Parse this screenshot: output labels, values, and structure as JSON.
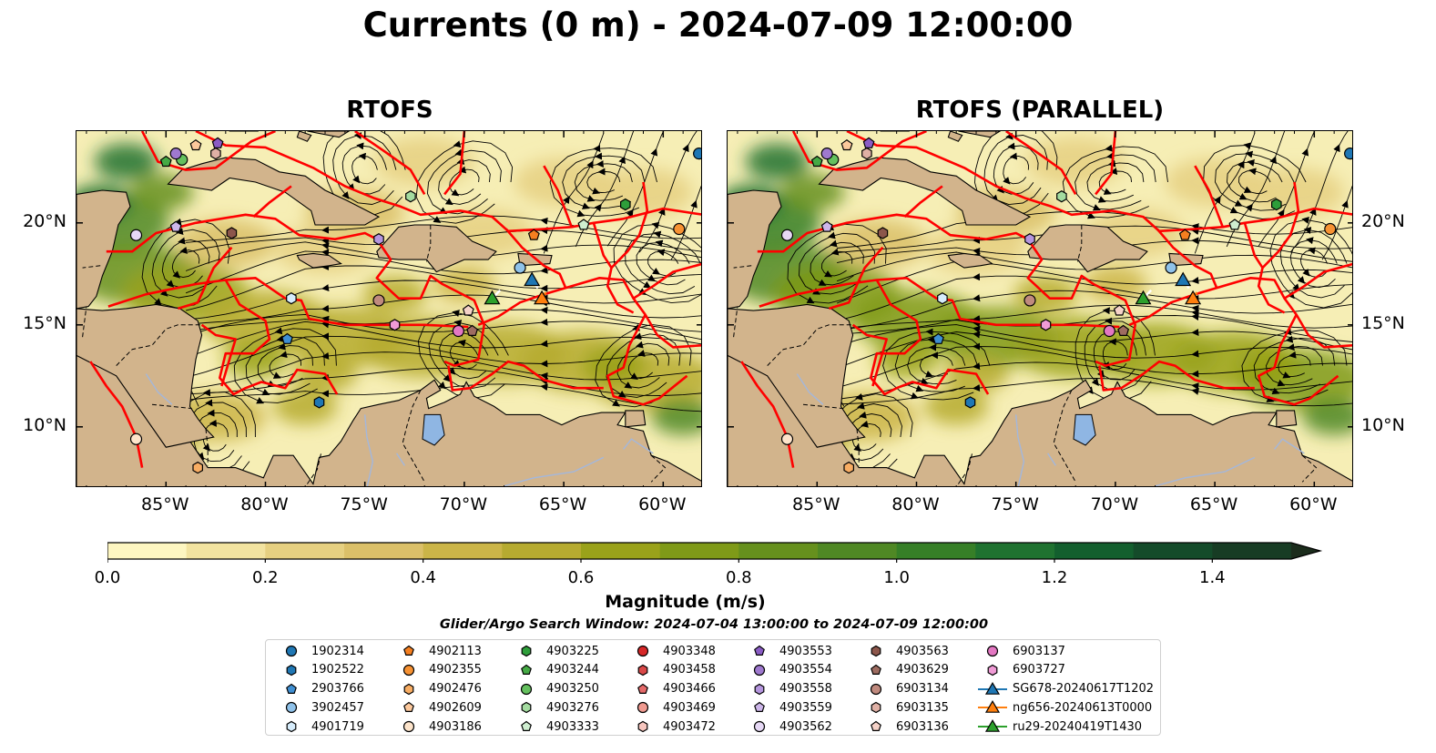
{
  "title": "Currents (0 m) - 2024-07-09 12:00:00",
  "panels": [
    {
      "title": "RTOFS",
      "variant": 0
    },
    {
      "title": "RTOFS (PARALLEL)",
      "variant": 1
    }
  ],
  "map": {
    "lon_range": [
      -89.5,
      -58.0
    ],
    "lat_range": [
      7.0,
      24.5
    ],
    "lon_ticks": [
      {
        "value": -85,
        "label": "85°W"
      },
      {
        "value": -80,
        "label": "80°W"
      },
      {
        "value": -75,
        "label": "75°W"
      },
      {
        "value": -70,
        "label": "70°W"
      },
      {
        "value": -65,
        "label": "65°W"
      },
      {
        "value": -60,
        "label": "60°W"
      }
    ],
    "lat_ticks": [
      {
        "value": 20,
        "label": "20°N"
      },
      {
        "value": 15,
        "label": "15°N"
      },
      {
        "value": 10,
        "label": "10°N"
      }
    ],
    "colors": {
      "land": "#d2b48c",
      "lake": "#8fb6e3",
      "river": "#a3b7dc",
      "eez": "#ff0000",
      "streamline": "#000000",
      "coast": "#000000"
    }
  },
  "colorbar": {
    "title": "Magnitude (m/s)",
    "min": 0.0,
    "max": 1.5,
    "step": 0.1,
    "extend": "max",
    "colors": [
      "#fdf6c1",
      "#f2e3a0",
      "#e6d081",
      "#dbc069",
      "#cbb548",
      "#b6ab30",
      "#9aa21a",
      "#7f9a18",
      "#66901d",
      "#4f8824",
      "#367f27",
      "#1f7230",
      "#135f2e",
      "#144b2a",
      "#173c24",
      "#1b2c1c"
    ],
    "labels": [
      {
        "value": 0.0,
        "label": "0.0"
      },
      {
        "value": 0.2,
        "label": "0.2"
      },
      {
        "value": 0.4,
        "label": "0.4"
      },
      {
        "value": 0.6,
        "label": "0.6"
      },
      {
        "value": 0.8,
        "label": "0.8"
      },
      {
        "value": 1.0,
        "label": "1.0"
      },
      {
        "value": 1.2,
        "label": "1.2"
      },
      {
        "value": 1.4,
        "label": "1.4"
      }
    ]
  },
  "search_window": "Glider/Argo Search Window: 2024-07-04 13:00:00 to 2024-07-09 12:00:00",
  "legend": [
    {
      "label": "1902314",
      "marker": "circle",
      "color": "#1f77b4",
      "lon": -58.2,
      "lat": 23.4
    },
    {
      "label": "1902522",
      "marker": "hexagon",
      "color": "#1f77b4",
      "lon": -77.3,
      "lat": 11.2
    },
    {
      "label": "2903766",
      "marker": "pentagon",
      "color": "#3f8fd2",
      "lon": -78.9,
      "lat": 14.3
    },
    {
      "label": "3902457",
      "marker": "circle",
      "color": "#8fc2ea",
      "lon": -67.2,
      "lat": 17.8
    },
    {
      "label": "4901719",
      "marker": "hexagon",
      "color": "#d6ecfb",
      "lon": -78.7,
      "lat": 16.3
    },
    {
      "label": "4902113",
      "marker": "pentagon",
      "color": "#f57f20",
      "lon": -66.5,
      "lat": 19.4
    },
    {
      "label": "4902355",
      "marker": "circle",
      "color": "#f79233",
      "lon": -59.2,
      "lat": 19.7
    },
    {
      "label": "4902476",
      "marker": "hexagon",
      "color": "#f8ad63",
      "lon": -83.4,
      "lat": 8.0
    },
    {
      "label": "4902609",
      "marker": "pentagon",
      "color": "#fcc89c",
      "lon": -83.5,
      "lat": 23.8
    },
    {
      "label": "4903186",
      "marker": "circle",
      "color": "#fde4cb",
      "lon": -86.5,
      "lat": 9.4
    },
    {
      "label": "4903225",
      "marker": "hexagon",
      "color": "#2e9e3a",
      "lon": -61.9,
      "lat": 20.9
    },
    {
      "label": "4903244",
      "marker": "pentagon",
      "color": "#45aa45",
      "lon": -85.0,
      "lat": 23.0
    },
    {
      "label": "4903250",
      "marker": "circle",
      "color": "#64c05e",
      "lon": -84.2,
      "lat": 23.1
    },
    {
      "label": "4903276",
      "marker": "hexagon",
      "color": "#a4dca0",
      "lon": -72.7,
      "lat": 21.3
    },
    {
      "label": "4903333",
      "marker": "pentagon",
      "color": "#cfeed0",
      "lon": -64.0,
      "lat": 19.9
    },
    {
      "label": "4903348",
      "marker": "circle",
      "color": "#d62728",
      "lon": -99.0,
      "lat": 99.0
    },
    {
      "label": "4903458",
      "marker": "hexagon",
      "color": "#d94848",
      "lon": -99.0,
      "lat": 99.0
    },
    {
      "label": "4903466",
      "marker": "pentagon",
      "color": "#e56a6a",
      "lon": -99.0,
      "lat": 99.0
    },
    {
      "label": "4903469",
      "marker": "circle",
      "color": "#f09a90",
      "lon": -99.0,
      "lat": 99.0
    },
    {
      "label": "4903472",
      "marker": "hexagon",
      "color": "#f7c6bf",
      "lon": -99.0,
      "lat": 99.0
    },
    {
      "label": "4903553",
      "marker": "pentagon",
      "color": "#8a5cc5",
      "lon": -82.4,
      "lat": 23.9
    },
    {
      "label": "4903554",
      "marker": "circle",
      "color": "#9f79cf",
      "lon": -84.5,
      "lat": 23.4
    },
    {
      "label": "4903558",
      "marker": "hexagon",
      "color": "#b596de",
      "lon": -74.3,
      "lat": 19.2
    },
    {
      "label": "4903559",
      "marker": "pentagon",
      "color": "#cdb6ea",
      "lon": -84.5,
      "lat": 19.8
    },
    {
      "label": "4903562",
      "marker": "circle",
      "color": "#e6d8f5",
      "lon": -86.5,
      "lat": 19.4
    },
    {
      "label": "4903563",
      "marker": "hexagon",
      "color": "#8c564b",
      "lon": -81.7,
      "lat": 19.5
    },
    {
      "label": "4903629",
      "marker": "pentagon",
      "color": "#9e6c61",
      "lon": -69.6,
      "lat": 14.7
    },
    {
      "label": "6903134",
      "marker": "circle",
      "color": "#c08a7e",
      "lon": -74.3,
      "lat": 16.2
    },
    {
      "label": "6903135",
      "marker": "hexagon",
      "color": "#dfb0a5",
      "lon": -82.5,
      "lat": 23.4
    },
    {
      "label": "6903136",
      "marker": "pentagon",
      "color": "#f5d2c8",
      "lon": -69.8,
      "lat": 15.7
    },
    {
      "label": "6903137",
      "marker": "circle",
      "color": "#e377c2",
      "lon": -70.3,
      "lat": 14.7
    },
    {
      "label": "6903727",
      "marker": "hexagon",
      "color": "#f09bd6",
      "lon": -73.5,
      "lat": 15.0
    },
    {
      "label": "SG678-20240617T1202",
      "marker": "triangle",
      "color": "#1f77b4",
      "line": true,
      "lon": -66.6,
      "lat": 17.2
    },
    {
      "label": "ng656-20240613T0000",
      "marker": "triangle",
      "color": "#ff7f0e",
      "line": true,
      "lon": -66.1,
      "lat": 16.3
    },
    {
      "label": "ru29-20240419T1430",
      "marker": "triangle",
      "color": "#2ca02c",
      "line": true,
      "lon": -68.6,
      "lat": 16.3
    }
  ]
}
